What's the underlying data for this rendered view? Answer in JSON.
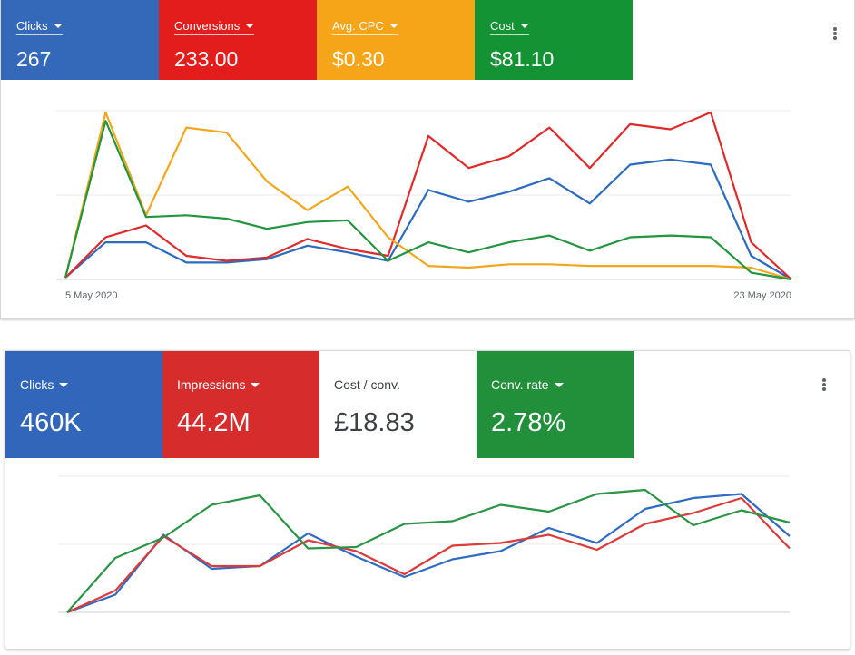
{
  "panels": [
    {
      "tiles": [
        {
          "label": "Clicks",
          "value": "267",
          "color": "#3468b8",
          "dropdown": true
        },
        {
          "label": "Conversions",
          "value": "233.00",
          "color": "#e31c1c",
          "dropdown": true
        },
        {
          "label": "Avg. CPC",
          "value": "$0.30",
          "color": "#f6a418",
          "dropdown": true
        },
        {
          "label": "Cost",
          "value": "$81.10",
          "color": "#149335",
          "dropdown": true
        }
      ],
      "menu_icon": "more-vert-icon"
    },
    {
      "tiles": [
        {
          "label": "Clicks",
          "value": "460K",
          "color": "#3166bb",
          "dropdown": true
        },
        {
          "label": "Impressions",
          "value": "44.2M",
          "color": "#d72c2c",
          "dropdown": true
        },
        {
          "label": "Cost / conv.",
          "value": "£18.83",
          "color": "#ffffff",
          "dropdown": false
        },
        {
          "label": "Conv. rate",
          "value": "2.78%",
          "color": "#228f3b",
          "dropdown": true
        }
      ],
      "menu_icon": "more-vert-icon"
    }
  ],
  "chart_data": [
    {
      "type": "line",
      "x_start_label": "5 May 2020",
      "x_end_label": "23 May 2020",
      "grid": true,
      "ylim": [
        0,
        100
      ],
      "series": [
        {
          "name": "Clicks",
          "color": "#2d6bbf",
          "values": [
            1,
            22,
            22,
            10,
            10,
            12,
            20,
            16,
            11,
            53,
            46,
            52,
            60,
            45,
            68,
            71,
            68,
            14,
            0
          ]
        },
        {
          "name": "Conversions",
          "color": "#df2a2a",
          "values": [
            1,
            25,
            32,
            14,
            11,
            13,
            24,
            18,
            14,
            85,
            66,
            73,
            90,
            66,
            92,
            89,
            99,
            22,
            0
          ]
        },
        {
          "name": "Avg. CPC",
          "color": "#f2a61c",
          "values": [
            1,
            99,
            38,
            90,
            87,
            58,
            41,
            55,
            25,
            8,
            7,
            9,
            9,
            8,
            8,
            8,
            8,
            7,
            0
          ]
        },
        {
          "name": "Cost",
          "color": "#22963f",
          "values": [
            1,
            94,
            37,
            38,
            36,
            30,
            34,
            35,
            11,
            22,
            16,
            22,
            26,
            17,
            25,
            26,
            25,
            4,
            0
          ]
        }
      ]
    },
    {
      "type": "line",
      "grid": true,
      "ylim": [
        0,
        100
      ],
      "series": [
        {
          "name": "Clicks",
          "color": "#2f6bc2",
          "values": [
            0,
            13,
            57,
            32,
            34,
            58,
            41,
            26,
            39,
            45,
            62,
            51,
            76,
            84,
            87,
            56
          ]
        },
        {
          "name": "Impressions",
          "color": "#dd3a3a",
          "values": [
            0,
            16,
            56,
            34,
            34,
            53,
            45,
            28,
            49,
            51,
            57,
            46,
            65,
            73,
            84,
            47
          ]
        },
        {
          "name": "Conv. rate",
          "color": "#2a9544",
          "values": [
            0,
            40,
            55,
            79,
            86,
            47,
            48,
            65,
            67,
            79,
            74,
            87,
            90,
            64,
            75,
            66
          ]
        }
      ]
    }
  ]
}
